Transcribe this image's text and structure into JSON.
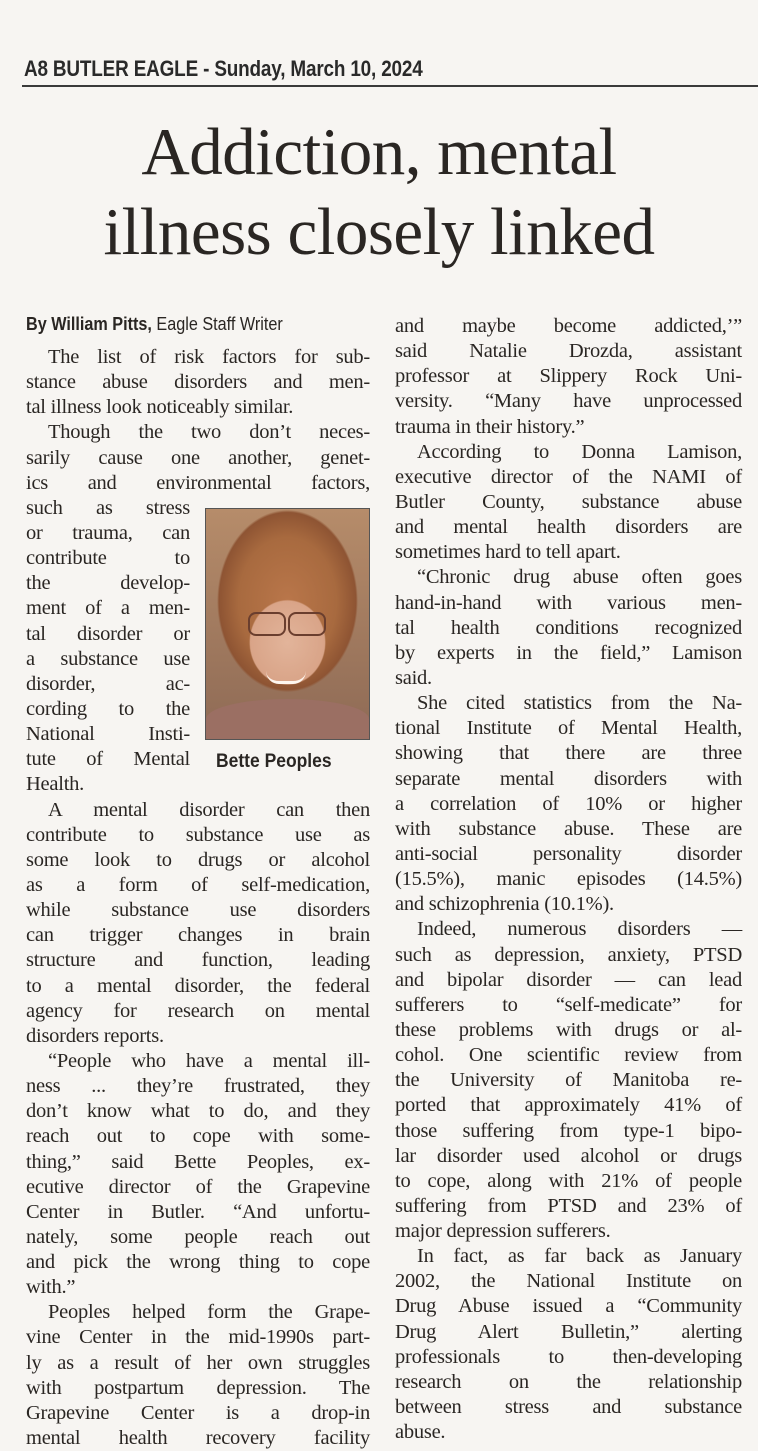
{
  "header": {
    "text": "A8 BUTLER EAGLE - Sunday, March 10, 2024"
  },
  "headline": {
    "line1": "Addiction, mental",
    "line2": "illness closely linked"
  },
  "byline": {
    "author": "By William Pitts,",
    "role": "Eagle Staff Writer"
  },
  "photo": {
    "caption": "Bette Peoples"
  },
  "left_column": [
    [
      "The list of risk factors for sub-",
      "stance abuse disorders and men-",
      "tal illness look noticeably similar."
    ],
    [
      "Though the two don’t neces-",
      "sarily cause one another, genet-",
      "ics and environmental factors,",
      "such as stress",
      "or trauma, can",
      "contribute to",
      "the develop-",
      "ment of a men-",
      "tal disorder or",
      "a substance use",
      "disorder, ac-",
      "cording to the",
      "National Insti-",
      "tute of Mental",
      "Health."
    ],
    [
      "A mental disorder can then",
      "contribute to substance use as",
      "some look to drugs or alcohol",
      "as a form of self-medication,",
      "while substance use disorders",
      "can trigger changes in brain",
      "structure and function, leading",
      "to a mental disorder, the federal",
      "agency for research on mental",
      "disorders reports."
    ],
    [
      "“People who have a mental ill-",
      "ness ... they’re frustrated, they",
      "don’t know what to do, and they",
      "reach out to cope with some-",
      "thing,” said Bette Peoples, ex-",
      "ecutive director of the Grapevine",
      "Center in Butler. “And unfortu-",
      "nately, some people reach out",
      "and pick the wrong thing to cope",
      "with.”"
    ],
    [
      "Peoples helped form the Grape-",
      "vine Center in the mid-1990s part-",
      "ly as a result of her own struggles",
      "with postpartum depression. The",
      "Grapevine Center is a drop-in",
      "mental health recovery facility"
    ]
  ],
  "right_column": [
    [
      "and maybe become addicted,’”",
      "said Natalie Drozda, assistant",
      "professor at Slippery Rock Uni-",
      "versity. “Many have unprocessed",
      "trauma in their history.”"
    ],
    [
      "According to Donna Lamison,",
      "executive director of the NAMI of",
      "Butler County, substance abuse",
      "and mental health disorders are",
      "sometimes hard to tell apart."
    ],
    [
      "“Chronic drug abuse often goes",
      "hand-in-hand with various men-",
      "tal health conditions recognized",
      "by experts in the field,” Lamison",
      "said."
    ],
    [
      "She cited statistics from the Na-",
      "tional Institute of Mental Health,",
      "showing that there are three",
      "separate mental disorders with",
      "a correlation of 10% or higher",
      "with substance abuse. These are",
      "anti-social personality disorder",
      "(15.5%), manic episodes (14.5%)",
      "and schizophrenia (10.1%)."
    ],
    [
      "Indeed, numerous disorders —",
      "such as depression, anxiety, PTSD",
      "and bipolar disorder — can lead",
      "sufferers to “self-medicate” for",
      "these problems with drugs or al-",
      "cohol. One scientific review from",
      "the University of Manitoba re-",
      "ported that approximately 41% of",
      "those suffering from type-1 bipo-",
      "lar disorder used alcohol or drugs",
      "to cope, along with 21% of people",
      "suffering from PTSD and 23% of",
      "major depression sufferers."
    ],
    [
      "In fact, as far back as January",
      "2002, the National Institute on",
      "Drug Abuse issued a “Community",
      "Drug Alert Bulletin,” alerting",
      "professionals to then-developing",
      "research on the relationship",
      "between stress and substance",
      "abuse."
    ]
  ]
}
